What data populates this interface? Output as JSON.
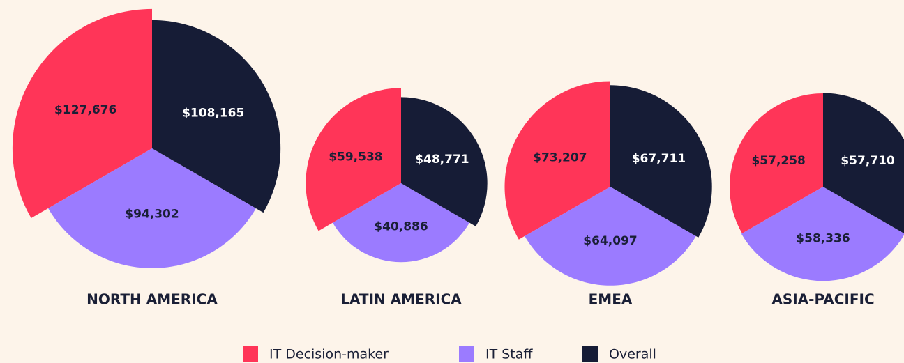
{
  "chart_data": {
    "type": "rose",
    "categories": [
      "NORTH AMERICA",
      "LATIN AMERICA",
      "EMEA",
      "ASIA-PACIFIC"
    ],
    "series": [
      {
        "name": "IT Decision-maker",
        "color": "#ff3558",
        "values": [
          127676,
          59538,
          73207,
          57258
        ],
        "value_labels": [
          "$127,676",
          "$59,538",
          "$73,207",
          "$57,258"
        ]
      },
      {
        "name": "IT Staff",
        "color": "#9b7bff",
        "values": [
          94302,
          40886,
          64097,
          58336
        ],
        "value_labels": [
          "$94,302",
          "$40,886",
          "$64,097",
          "$58,336"
        ]
      },
      {
        "name": "Overall",
        "color": "#161c36",
        "values": [
          108165,
          48771,
          67711,
          57710
        ],
        "value_labels": [
          "$108,165",
          "$48,771",
          "$67,711",
          "$57,710"
        ]
      }
    ]
  }
}
